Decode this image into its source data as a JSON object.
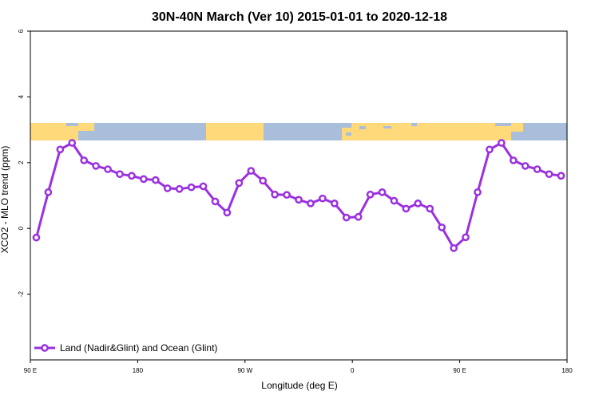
{
  "chart_data": {
    "type": "line",
    "title": "30N-40N March (Ver 10)   2015-01-01 to 2020-12-18",
    "xlabel": "Longitude (deg E)",
    "ylabel": "XCO2 - MLO trend (ppm)",
    "xlim": [
      90,
      540
    ],
    "ylim": [
      -4,
      6
    ],
    "x_ticks": [
      {
        "value": 90,
        "label": "90 E"
      },
      {
        "value": 180,
        "label": "180"
      },
      {
        "value": 270,
        "label": "90 W"
      },
      {
        "value": 360,
        "label": "0"
      },
      {
        "value": 450,
        "label": "90 E"
      },
      {
        "value": 540,
        "label": "180"
      }
    ],
    "y_ticks": [
      {
        "value": -2,
        "label": "-2"
      },
      {
        "value": 0,
        "label": "0"
      },
      {
        "value": 2,
        "label": "2"
      },
      {
        "value": 4,
        "label": "4"
      },
      {
        "value": 6,
        "label": "6"
      }
    ],
    "grid": false,
    "legend_position": "bottom-left",
    "color": "#9b30e0",
    "land_color": "#ffd97a",
    "ocean_color": "#a9bedb",
    "series": [
      {
        "name": "Land (Nadir&Glint) and Ocean (Glint)",
        "x": [
          95,
          105,
          115,
          125,
          135,
          145,
          155,
          165,
          175,
          185,
          195,
          205,
          215,
          225,
          235,
          245,
          255,
          265,
          275,
          285,
          295,
          305,
          315,
          325,
          335,
          345,
          355,
          365,
          375,
          385,
          395,
          405,
          415,
          425,
          435,
          445,
          455,
          465,
          475,
          485,
          495,
          505,
          515,
          525,
          535
        ],
        "values": [
          -0.28,
          1.1,
          2.4,
          2.6,
          2.07,
          1.9,
          1.8,
          1.65,
          1.6,
          1.5,
          1.47,
          1.22,
          1.2,
          1.25,
          1.28,
          0.82,
          0.48,
          1.38,
          1.75,
          1.45,
          1.03,
          1.02,
          0.87,
          0.76,
          0.91,
          0.76,
          0.33,
          0.35,
          1.03,
          1.1,
          0.84,
          0.6,
          0.76,
          0.6,
          0.03,
          -0.6,
          -0.27,
          1.1,
          2.4,
          2.6,
          2.07,
          1.9,
          1.8,
          1.65,
          1.6
        ]
      }
    ]
  }
}
